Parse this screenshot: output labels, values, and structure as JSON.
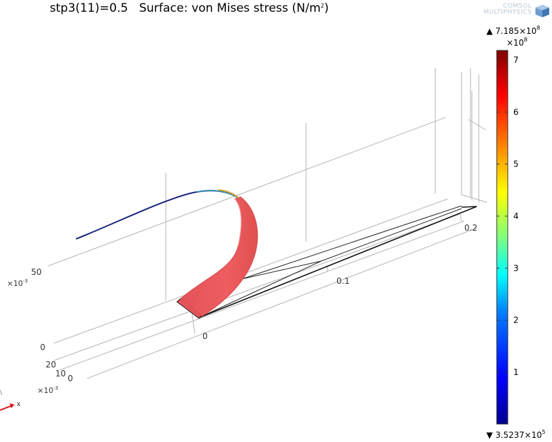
{
  "title": {
    "param": "stp3(11)=0.5",
    "main": "Surface: von Mises stress (N/m",
    "unit_sup": "2",
    "close": ")"
  },
  "logo": {
    "line1": "COMSOL",
    "line2": "MULTIPHYSICS"
  },
  "colorbar": {
    "max_label": "▲ 7.185×10",
    "max_exp": "8",
    "scale_label": "×10",
    "scale_exp": "8",
    "min_label": "▼ 3.5237×10",
    "min_exp": "5",
    "ticks": [
      {
        "label": "7",
        "value": 7
      },
      {
        "label": "6",
        "value": 6
      },
      {
        "label": "5",
        "value": 5
      },
      {
        "label": "4",
        "value": 4
      },
      {
        "label": "3",
        "value": 3
      },
      {
        "label": "2",
        "value": 2
      },
      {
        "label": "1",
        "value": 1
      }
    ],
    "range": [
      0.0035237,
      7.185
    ],
    "colormap": "rainbow",
    "colors": [
      "#00008f",
      "#0000ff",
      "#007fff",
      "#00ffff",
      "#7fff7f",
      "#ffff00",
      "#ff7f00",
      "#ff0000",
      "#7f0000"
    ]
  },
  "chart_data": {
    "type": "surface",
    "title": "stp3(11)=0.5 Surface: von Mises stress (N/m²)",
    "quantity": "von Mises stress",
    "unit": "N/m²",
    "parameter": {
      "name": "stp3(11)",
      "value": 0.5
    },
    "color_range": [
      352370,
      718500000
    ],
    "axes": {
      "x": {
        "name": "x",
        "ticks": [
          "0",
          "0.1",
          "0.2"
        ]
      },
      "y": {
        "exponent_label": "×10-3",
        "ticks": [
          "0",
          "10",
          "20"
        ]
      },
      "z": {
        "exponent_label": "×10-3",
        "ticks": [
          "0",
          "50"
        ]
      }
    },
    "grid": true
  }
}
